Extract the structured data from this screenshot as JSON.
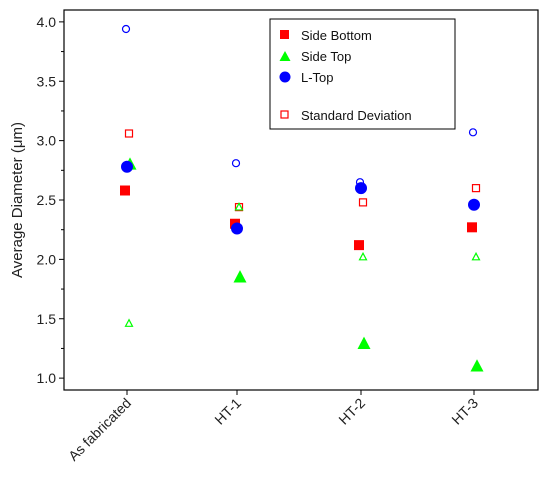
{
  "chart_data": {
    "type": "scatter",
    "title": "",
    "xlabel": "",
    "ylabel": "Average Diameter (μm)",
    "categories": [
      "As fabricated",
      "HT-1",
      "HT-2",
      "HT-3"
    ],
    "ylim": [
      0.9,
      4.1
    ],
    "yticks": [
      1.0,
      1.5,
      2.0,
      2.5,
      3.0,
      3.5,
      4.0
    ],
    "ytick_labels": [
      "1.0",
      "1.5",
      "2.0",
      "2.5",
      "3.0",
      "3.5",
      "4.0"
    ],
    "grid": false,
    "legend_position": "top-center",
    "series": [
      {
        "name": "Side Bottom",
        "marker": "square",
        "filled": true,
        "color": "#ff0000",
        "values": [
          2.58,
          2.3,
          2.12,
          2.27
        ],
        "std_dev": [
          3.06,
          2.44,
          2.48,
          2.6
        ]
      },
      {
        "name": "Side Top",
        "marker": "triangle",
        "filled": true,
        "color": "#00ff00",
        "values": [
          2.8,
          1.85,
          1.29,
          1.1
        ],
        "std_dev": [
          1.46,
          2.44,
          2.02,
          2.02
        ]
      },
      {
        "name": "L-Top",
        "marker": "circle",
        "filled": true,
        "color": "#0000ff",
        "values": [
          2.78,
          2.26,
          2.6,
          2.46
        ],
        "std_dev": [
          3.94,
          2.81,
          2.65,
          3.07
        ]
      }
    ],
    "std_dev_legend_label": "Standard Deviation"
  }
}
